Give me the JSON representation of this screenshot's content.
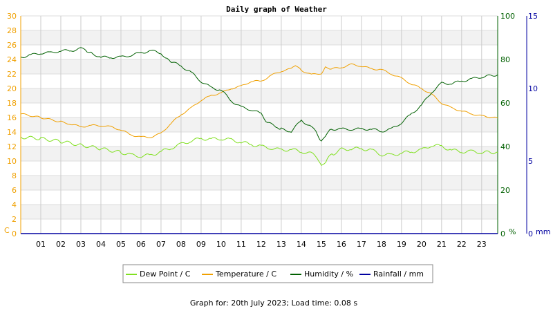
{
  "chart_data": {
    "type": "line",
    "title": "Daily graph of Weather",
    "footer": "Graph for: 20th July 2023; Load time: 0.08 s",
    "x_ticks": [
      "01",
      "02",
      "03",
      "04",
      "05",
      "06",
      "07",
      "08",
      "09",
      "10",
      "11",
      "12",
      "13",
      "14",
      "15",
      "16",
      "17",
      "18",
      "19",
      "20",
      "21",
      "22",
      "23"
    ],
    "xlim": [
      0,
      23.8
    ],
    "axes": {
      "left": {
        "unit": "C",
        "color": "#f0a000",
        "range": [
          0,
          30
        ],
        "ticks": [
          "0",
          "2",
          "4",
          "6",
          "8",
          "10",
          "12",
          "14",
          "16",
          "18",
          "20",
          "22",
          "24",
          "26",
          "28",
          "30"
        ]
      },
      "right1": {
        "unit": "%",
        "color": "#006000",
        "range": [
          0,
          100
        ],
        "ticks": [
          "0",
          "20",
          "40",
          "60",
          "80",
          "100"
        ]
      },
      "right2": {
        "unit": "mm",
        "color": "#0000a0",
        "range": [
          0,
          15
        ],
        "ticks": [
          "0",
          "5",
          "10",
          "15"
        ]
      }
    },
    "series": [
      {
        "name": "Dew Point / C",
        "color": "#80e020",
        "axis": "left",
        "points": [
          [
            0,
            13.3
          ],
          [
            1,
            13.1
          ],
          [
            2,
            12.7
          ],
          [
            3,
            12.2
          ],
          [
            4,
            11.7
          ],
          [
            5,
            11.2
          ],
          [
            5.5,
            10.8
          ],
          [
            6,
            10.7
          ],
          [
            6.5,
            10.8
          ],
          [
            7,
            11.3
          ],
          [
            7.5,
            11.8
          ],
          [
            8,
            12.3
          ],
          [
            8.5,
            12.8
          ],
          [
            9,
            13.1
          ],
          [
            9.5,
            13.0
          ],
          [
            10,
            13.1
          ],
          [
            10.5,
            12.9
          ],
          [
            11,
            12.6
          ],
          [
            11.5,
            12.3
          ],
          [
            12,
            12.0
          ],
          [
            12.5,
            11.8
          ],
          [
            13,
            11.5
          ],
          [
            13.5,
            11.6
          ],
          [
            14,
            11.3
          ],
          [
            14.5,
            11.0
          ],
          [
            14.8,
            10.5
          ],
          [
            15,
            9.3
          ],
          [
            15.3,
            10.3
          ],
          [
            15.6,
            11.0
          ],
          [
            16,
            11.6
          ],
          [
            16.5,
            11.7
          ],
          [
            17,
            11.7
          ],
          [
            17.5,
            11.5
          ],
          [
            18,
            10.9
          ],
          [
            18.5,
            10.8
          ],
          [
            19,
            11.1
          ],
          [
            19.5,
            11.3
          ],
          [
            20,
            11.5
          ],
          [
            20.5,
            12.2
          ],
          [
            21,
            12.0
          ],
          [
            21.5,
            11.5
          ],
          [
            22,
            11.3
          ],
          [
            22.5,
            11.3
          ],
          [
            23,
            11.2
          ],
          [
            23.8,
            11.2
          ]
        ]
      },
      {
        "name": "Temperature / C",
        "color": "#f0a000",
        "axis": "left",
        "points": [
          [
            0,
            16.5
          ],
          [
            1,
            16.0
          ],
          [
            2,
            15.4
          ],
          [
            2.5,
            15.1
          ],
          [
            3,
            14.7
          ],
          [
            3.5,
            14.9
          ],
          [
            4,
            14.9
          ],
          [
            4.5,
            14.7
          ],
          [
            5,
            14.3
          ],
          [
            5.5,
            13.6
          ],
          [
            6,
            13.3
          ],
          [
            6.5,
            13.3
          ],
          [
            7,
            13.8
          ],
          [
            7.5,
            15.2
          ],
          [
            8,
            16.4
          ],
          [
            8.5,
            17.3
          ],
          [
            9,
            18.4
          ],
          [
            9.5,
            19.0
          ],
          [
            10,
            19.4
          ],
          [
            10.5,
            20.0
          ],
          [
            11,
            20.3
          ],
          [
            11.5,
            21.0
          ],
          [
            12,
            21.0
          ],
          [
            12.5,
            21.8
          ],
          [
            13,
            22.4
          ],
          [
            13.5,
            22.7
          ],
          [
            13.7,
            23.2
          ],
          [
            14,
            22.5
          ],
          [
            14.5,
            21.9
          ],
          [
            15,
            22.1
          ],
          [
            15.2,
            22.9
          ],
          [
            15.5,
            22.7
          ],
          [
            16,
            22.9
          ],
          [
            16.5,
            23.3
          ],
          [
            17,
            23.1
          ],
          [
            17.5,
            22.7
          ],
          [
            18,
            22.6
          ],
          [
            18.5,
            22.0
          ],
          [
            19,
            21.4
          ],
          [
            19.5,
            20.6
          ],
          [
            20,
            20.0
          ],
          [
            20.5,
            19.2
          ],
          [
            21,
            18.0
          ],
          [
            21.5,
            17.3
          ],
          [
            22,
            16.9
          ],
          [
            22.5,
            16.5
          ],
          [
            23,
            16.2
          ],
          [
            23.8,
            15.9
          ]
        ]
      },
      {
        "name": "Humidity / %",
        "color": "#006000",
        "axis": "right1",
        "points": [
          [
            0,
            81
          ],
          [
            0.5,
            82
          ],
          [
            1,
            83
          ],
          [
            1.5,
            83
          ],
          [
            2,
            84
          ],
          [
            2.5,
            84
          ],
          [
            3,
            85
          ],
          [
            3.3,
            84
          ],
          [
            3.5,
            83
          ],
          [
            4,
            81
          ],
          [
            4.5,
            81
          ],
          [
            5,
            81
          ],
          [
            5.5,
            82
          ],
          [
            6,
            83
          ],
          [
            6.5,
            84
          ],
          [
            7,
            83
          ],
          [
            7.3,
            80
          ],
          [
            7.5,
            79
          ],
          [
            8,
            77
          ],
          [
            8.5,
            74
          ],
          [
            9,
            70
          ],
          [
            9.5,
            67
          ],
          [
            10,
            66
          ],
          [
            10.5,
            61
          ],
          [
            11,
            58
          ],
          [
            11.5,
            57
          ],
          [
            12,
            55
          ],
          [
            12.3,
            51
          ],
          [
            12.8,
            49
          ],
          [
            13,
            48
          ],
          [
            13.5,
            47
          ],
          [
            14,
            52
          ],
          [
            14.5,
            49
          ],
          [
            14.8,
            46
          ],
          [
            15,
            42
          ],
          [
            15.2,
            45
          ],
          [
            15.5,
            48
          ],
          [
            16,
            48
          ],
          [
            16.5,
            48
          ],
          [
            17,
            48
          ],
          [
            17.5,
            48
          ],
          [
            18,
            47
          ],
          [
            18.5,
            48
          ],
          [
            19,
            51
          ],
          [
            19.5,
            55
          ],
          [
            20,
            59
          ],
          [
            20.5,
            65
          ],
          [
            21,
            69
          ],
          [
            21.5,
            69
          ],
          [
            22,
            70
          ],
          [
            22.5,
            71
          ],
          [
            23,
            72
          ],
          [
            23.8,
            73
          ]
        ]
      },
      {
        "name": "Rainfall / mm",
        "color": "#0000a0",
        "axis": "right2",
        "points": [
          [
            0,
            0
          ],
          [
            23.8,
            0
          ]
        ]
      }
    ],
    "legend_position": "bottom-center",
    "grid": true
  }
}
